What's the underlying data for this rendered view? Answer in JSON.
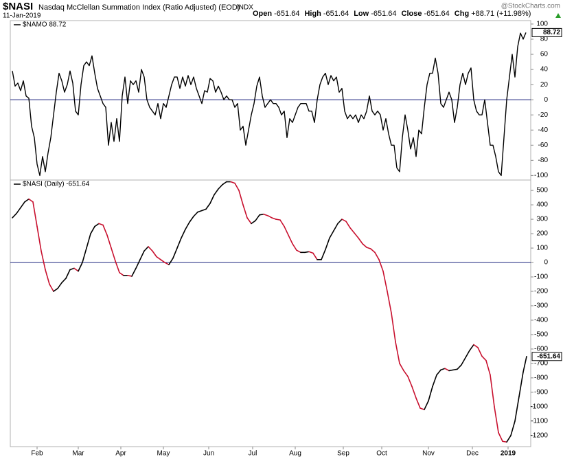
{
  "header": {
    "symbol": "$NASI",
    "name": "Nasdaq McClellan Summation Index (Ratio Adjusted) (EOD)",
    "exchange": "INDX",
    "date": "11-Jan-2019",
    "watermark": "@StockCharts.com",
    "quote": [
      {
        "label": "Open",
        "value": "-651.64"
      },
      {
        "label": "High",
        "value": "-651.64"
      },
      {
        "label": "Low",
        "value": "-651.64"
      },
      {
        "label": "Close",
        "value": "-651.64"
      },
      {
        "label": "Chg",
        "value": "+88.71 (+11.98%)"
      }
    ]
  },
  "chart_data": [
    {
      "type": "line",
      "xlim": [
        -1.5,
        377.5
      ],
      "ylim": [
        -106,
        104.5
      ],
      "yticks": [
        100,
        80,
        60,
        40,
        20,
        0,
        -20,
        -40,
        -60,
        -80,
        -100
      ],
      "zero_line": true,
      "x": [
        0,
        2,
        4,
        6,
        8,
        10,
        12,
        14,
        16,
        18,
        20,
        22,
        24,
        26,
        28,
        30,
        32,
        34,
        36,
        38,
        40,
        42,
        44,
        46,
        48,
        50,
        52,
        54,
        56,
        58,
        60,
        62,
        64,
        66,
        68,
        70,
        72,
        74,
        76,
        78,
        80,
        82,
        84,
        86,
        88,
        90,
        92,
        94,
        96,
        98,
        100,
        102,
        104,
        106,
        108,
        110,
        112,
        114,
        116,
        118,
        120,
        122,
        124,
        126,
        128,
        130,
        132,
        134,
        136,
        138,
        140,
        142,
        144,
        146,
        148,
        150,
        152,
        154,
        156,
        158,
        160,
        162,
        164,
        166,
        168,
        170,
        172,
        174,
        176,
        178,
        180,
        182,
        184,
        186,
        188,
        190,
        192,
        194,
        196,
        198,
        200,
        202,
        204,
        206,
        208,
        210,
        212,
        214,
        216,
        218,
        220,
        222,
        224,
        226,
        228,
        230,
        232,
        234,
        236,
        238,
        240,
        242,
        244,
        246,
        248,
        250,
        252,
        254,
        256,
        258,
        260,
        262,
        264,
        266,
        268,
        270,
        272,
        274,
        276,
        278,
        280,
        282,
        284,
        286,
        288,
        290,
        292,
        294,
        296,
        298,
        300,
        302,
        304,
        306,
        308,
        310,
        312,
        314,
        316,
        318,
        320,
        322,
        324,
        326,
        328,
        330,
        332,
        334,
        336,
        338,
        340,
        342,
        344,
        346,
        348,
        350,
        352,
        354,
        356,
        358,
        360,
        362,
        364,
        366,
        368,
        370,
        372,
        374
      ],
      "series": [
        {
          "name": "$NAMO 88.72",
          "color": "#000000",
          "values": [
            38,
            18,
            22,
            12,
            25,
            5,
            2,
            -35,
            -50,
            -85,
            -100,
            -75,
            -95,
            -70,
            -50,
            -20,
            10,
            35,
            25,
            10,
            20,
            38,
            22,
            -15,
            -20,
            20,
            45,
            50,
            45,
            58,
            35,
            15,
            5,
            -5,
            -10,
            -60,
            -30,
            -55,
            -25,
            -55,
            5,
            30,
            -5,
            25,
            20,
            25,
            10,
            40,
            30,
            0,
            -10,
            -15,
            -20,
            -5,
            -25,
            -5,
            -10,
            5,
            20,
            30,
            30,
            15,
            30,
            18,
            32,
            20,
            30,
            15,
            5,
            -5,
            12,
            10,
            28,
            25,
            10,
            18,
            10,
            0,
            5,
            0,
            0,
            -10,
            -5,
            -40,
            -35,
            -60,
            -40,
            -20,
            -5,
            18,
            30,
            5,
            -10,
            -5,
            0,
            -5,
            -5,
            -10,
            -20,
            -15,
            -50,
            -25,
            -30,
            -20,
            -10,
            -5,
            -5,
            -5,
            -15,
            -15,
            -30,
            0,
            20,
            30,
            35,
            20,
            32,
            25,
            30,
            10,
            15,
            -15,
            -25,
            -20,
            -25,
            -20,
            -30,
            -20,
            -25,
            -15,
            5,
            -15,
            -20,
            -15,
            -20,
            -40,
            -25,
            -45,
            -60,
            -60,
            -90,
            -95,
            -50,
            -20,
            -40,
            -65,
            -50,
            -75,
            -40,
            -45,
            -10,
            20,
            35,
            35,
            55,
            35,
            -5,
            -10,
            0,
            10,
            0,
            -30,
            -10,
            20,
            35,
            20,
            35,
            42,
            0,
            -15,
            -20,
            -20,
            0,
            -30,
            -60,
            -60,
            -75,
            -95,
            -100,
            -50,
            0,
            30,
            60,
            30,
            70,
            88,
            80,
            88.72
          ]
        }
      ]
    },
    {
      "type": "line",
      "xlim": [
        -1.5,
        377.5
      ],
      "ylim": [
        -1277,
        572
      ],
      "yticks": [
        500,
        400,
        300,
        200,
        100,
        0,
        -100,
        -200,
        -300,
        -400,
        -500,
        -600,
        -700,
        -800,
        -900,
        -1000,
        -1100,
        -1200
      ],
      "zero_line": true,
      "up_color": "#000000",
      "down_color": "#c8102e",
      "xticks": [
        {
          "value": 18,
          "label": "Feb"
        },
        {
          "value": 48,
          "label": "Mar"
        },
        {
          "value": 79,
          "label": "Apr"
        },
        {
          "value": 110,
          "label": "May"
        },
        {
          "value": 143,
          "label": "Jun"
        },
        {
          "value": 175,
          "label": "Jul"
        },
        {
          "value": 206,
          "label": "Aug"
        },
        {
          "value": 241,
          "label": "Sep"
        },
        {
          "value": 269,
          "label": "Oct"
        },
        {
          "value": 303,
          "label": "Nov"
        },
        {
          "value": 335,
          "label": "Dec"
        },
        {
          "value": 361,
          "label": "2019"
        }
      ],
      "x": [
        0,
        3,
        6,
        9,
        12,
        15,
        18,
        21,
        24,
        27,
        30,
        33,
        36,
        39,
        42,
        45,
        48,
        51,
        54,
        57,
        60,
        63,
        66,
        69,
        72,
        75,
        78,
        81,
        84,
        87,
        90,
        93,
        96,
        99,
        102,
        105,
        108,
        111,
        114,
        117,
        120,
        123,
        126,
        129,
        132,
        135,
        138,
        141,
        144,
        147,
        150,
        153,
        156,
        159,
        162,
        165,
        168,
        171,
        174,
        177,
        180,
        183,
        186,
        189,
        192,
        195,
        198,
        201,
        204,
        207,
        210,
        213,
        216,
        219,
        222,
        225,
        228,
        231,
        234,
        237,
        240,
        243,
        246,
        249,
        252,
        255,
        258,
        261,
        264,
        267,
        270,
        273,
        276,
        279,
        282,
        285,
        288,
        291,
        294,
        297,
        300,
        303,
        306,
        309,
        312,
        315,
        318,
        321,
        324,
        327,
        330,
        333,
        336,
        339,
        342,
        345,
        348,
        351,
        354,
        357,
        360,
        363,
        366,
        369,
        372,
        374.5
      ],
      "series": [
        {
          "name": "$NASI (Daily) -651.64",
          "color": "#000000",
          "values": [
            310,
            340,
            380,
            420,
            440,
            420,
            250,
            80,
            -50,
            -150,
            -200,
            -180,
            -140,
            -110,
            -50,
            -40,
            -60,
            0,
            100,
            200,
            250,
            270,
            260,
            190,
            100,
            10,
            -70,
            -90,
            -90,
            -95,
            -40,
            20,
            80,
            110,
            80,
            40,
            20,
            0,
            -15,
            30,
            100,
            170,
            230,
            280,
            320,
            350,
            360,
            370,
            410,
            470,
            510,
            540,
            560,
            560,
            550,
            500,
            400,
            310,
            270,
            290,
            330,
            335,
            325,
            310,
            300,
            295,
            250,
            190,
            130,
            85,
            70,
            70,
            75,
            65,
            20,
            20,
            90,
            170,
            220,
            270,
            300,
            285,
            240,
            205,
            170,
            130,
            105,
            95,
            70,
            20,
            -60,
            -200,
            -350,
            -550,
            -700,
            -750,
            -790,
            -860,
            -940,
            -1010,
            -1020,
            -960,
            -860,
            -780,
            -745,
            -735,
            -750,
            -745,
            -740,
            -710,
            -660,
            -610,
            -570,
            -590,
            -650,
            -680,
            -780,
            -1000,
            -1180,
            -1240,
            -1245,
            -1200,
            -1100,
            -930,
            -760,
            -651.64
          ]
        }
      ]
    }
  ]
}
